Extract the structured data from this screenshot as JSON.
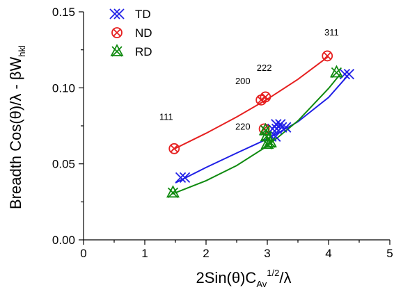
{
  "chart_data": {
    "type": "scatter",
    "xlabel": {
      "base": "2Sin(θ)C",
      "sub": "Av",
      "sup": "1/2",
      "tail": "/λ"
    },
    "ylabel": {
      "base": "Breadth Cos(θ)/λ - βW",
      "sub": "hkl"
    },
    "xlim": [
      0,
      5
    ],
    "ylim": [
      0.0,
      0.15
    ],
    "x_ticks": [
      0,
      1,
      2,
      3,
      4,
      5
    ],
    "y_ticks": [
      0.0,
      0.05,
      0.1,
      0.15
    ],
    "x_tick_labels": [
      "0",
      "1",
      "2",
      "3",
      "4",
      "5"
    ],
    "y_tick_labels": [
      "0.00",
      "0.05",
      "0.10",
      "0.15"
    ],
    "legend_position": "top-left",
    "grid": false,
    "series": [
      {
        "name": "TD",
        "color": "#1f1fe6",
        "marker": "double-x",
        "points": [
          [
            1.62,
            0.041
          ],
          [
            3.12,
            0.073
          ],
          [
            3.18,
            0.076
          ],
          [
            3.27,
            0.074
          ],
          [
            3.1,
            0.068
          ],
          [
            4.3,
            0.109
          ]
        ],
        "fit": [
          [
            1.5,
            0.0375
          ],
          [
            2.0,
            0.0476
          ],
          [
            2.5,
            0.0571
          ],
          [
            3.0,
            0.0664
          ],
          [
            3.5,
            0.0777
          ],
          [
            4.0,
            0.0937
          ],
          [
            4.3,
            0.1074
          ]
        ]
      },
      {
        "name": "ND",
        "color": "#e62020",
        "marker": "circle-x",
        "points": [
          [
            1.48,
            0.06
          ],
          [
            2.9,
            0.092
          ],
          [
            2.97,
            0.094
          ],
          [
            2.95,
            0.073
          ],
          [
            3.98,
            0.121
          ]
        ],
        "fit": [
          [
            1.45,
            0.0592
          ],
          [
            2.0,
            0.0701
          ],
          [
            2.5,
            0.0808
          ],
          [
            3.0,
            0.0925
          ],
          [
            3.5,
            0.1056
          ],
          [
            4.0,
            0.1207
          ]
        ]
      },
      {
        "name": "RD",
        "color": "#0f8a0f",
        "marker": "x-triangle",
        "points": [
          [
            1.46,
            0.031
          ],
          [
            2.97,
            0.072
          ],
          [
            2.99,
            0.068
          ],
          [
            3.0,
            0.063
          ],
          [
            3.05,
            0.064
          ],
          [
            4.13,
            0.11
          ]
        ],
        "fit": [
          [
            1.45,
            0.0302
          ],
          [
            2.0,
            0.0389
          ],
          [
            2.5,
            0.0489
          ],
          [
            3.0,
            0.0617
          ],
          [
            3.5,
            0.0783
          ],
          [
            4.0,
            0.0996
          ],
          [
            4.2,
            0.1095
          ]
        ]
      }
    ],
    "annotations": [
      {
        "text": "111",
        "x": 1.35,
        "y": 0.079
      },
      {
        "text": "200",
        "x": 2.6,
        "y": 0.1025
      },
      {
        "text": "222",
        "x": 2.95,
        "y": 0.1112
      },
      {
        "text": "220",
        "x": 2.6,
        "y": 0.0725
      },
      {
        "text": "311",
        "x": 4.05,
        "y": 0.1345
      }
    ]
  }
}
